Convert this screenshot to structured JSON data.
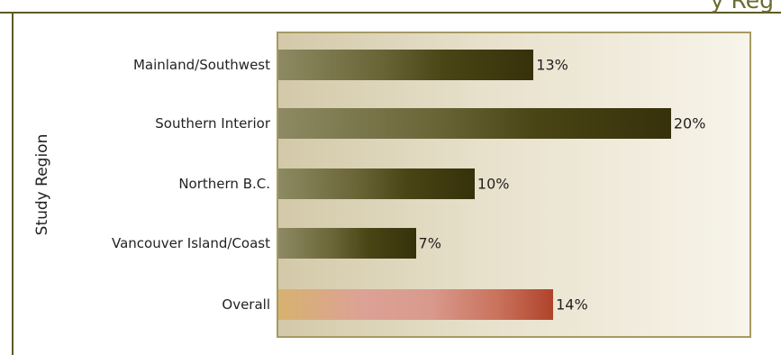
{
  "header": {
    "title_fragment": "y Reg"
  },
  "chart_data": {
    "type": "bar",
    "orientation": "horizontal",
    "title": "",
    "xlabel": "",
    "ylabel": "Study Region",
    "categories": [
      "Mainland/Southwest",
      "Southern Interior",
      "Northern B.C.",
      "Vancouver Island/Coast",
      "Overall"
    ],
    "values": [
      13,
      20,
      10,
      7,
      14
    ],
    "value_labels": [
      "13%",
      "20%",
      "10%",
      "7%",
      "14%"
    ],
    "xlim": [
      0,
      24
    ],
    "grid": false,
    "colors": {
      "regions": "#4a4515",
      "overall": "#b0432b"
    }
  }
}
